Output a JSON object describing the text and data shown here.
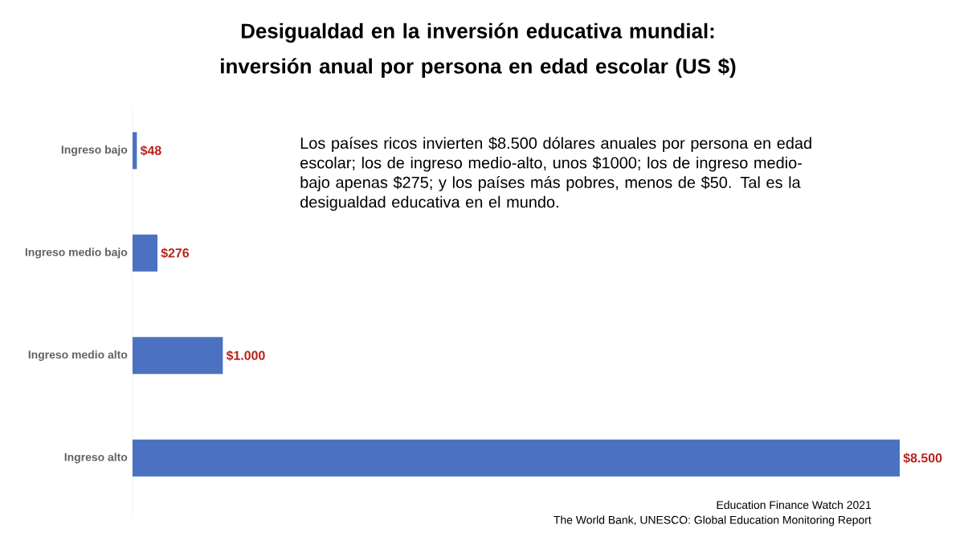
{
  "chart_data": {
    "type": "bar",
    "orientation": "horizontal",
    "title": "Desigualdad en la inversión educativa mundial: inversión anual por persona en edad escolar (US $)",
    "categories": [
      "Ingreso bajo",
      "Ingreso medio bajo",
      "Ingreso medio alto",
      "Ingreso alto"
    ],
    "values": [
      48,
      276,
      1000,
      8500
    ],
    "value_labels": [
      "$48",
      "$276",
      "$1.000",
      "$8.500"
    ],
    "color": "#4a72c0",
    "annotations": [
      "Los países ricos invierten $8.500 dólares anuales por persona en edad escolar; los de ingreso medio-alto, unos $1000; los de ingreso medio-bajo apenas $275; y los países más pobres, menos de $50. Tal es la desigualdad educativa en el mundo.",
      "Education Finance Watch 2021",
      "The World Bank, UNESCO: Global Education Monitoring Report"
    ]
  }
}
